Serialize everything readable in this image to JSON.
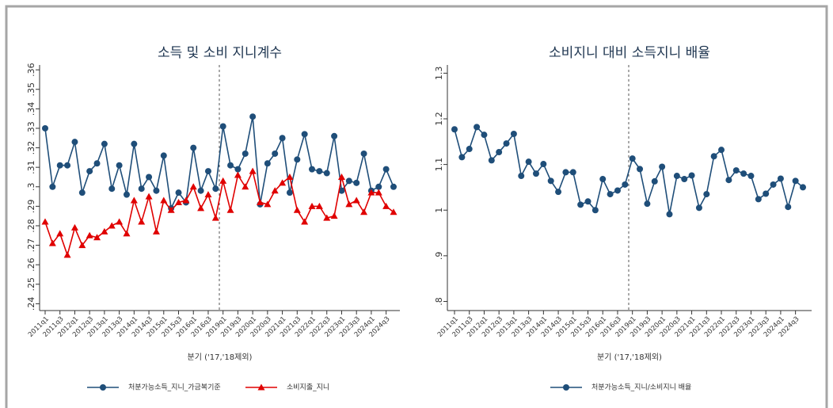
{
  "chart_data": [
    {
      "type": "line",
      "title": "소득 및 소비 지니계수",
      "xlabel": "분기 ('17,'18제외)",
      "categories": [
        "2011q1",
        null,
        "2011q3",
        null,
        "2012q1",
        null,
        "2012q3",
        null,
        "2013q1",
        null,
        "2013q3",
        null,
        "2014q1",
        null,
        "2014q3",
        null,
        "2015q1",
        null,
        "2015q3",
        null,
        "2016q1",
        null,
        "2016q3",
        null,
        "2019q1",
        null,
        "2019q3",
        null,
        "2020q1",
        null,
        "2020q3",
        null,
        "2021q1",
        null,
        "2021q3",
        null,
        "2022q1",
        null,
        "2022q3",
        null,
        "2023q1",
        null,
        "2023q3",
        null,
        "2024q1",
        null,
        "2024q3",
        null
      ],
      "series": [
        {
          "name": "처분가능소득_지니_가금복기준",
          "color": "#1f4e79",
          "marker": "circle",
          "values": [
            0.33,
            0.3,
            0.311,
            0.311,
            0.323,
            0.297,
            0.308,
            0.312,
            0.322,
            0.299,
            0.311,
            0.296,
            0.322,
            0.299,
            0.305,
            0.298,
            0.316,
            0.289,
            0.297,
            0.292,
            0.32,
            0.298,
            0.308,
            0.299,
            0.331,
            0.311,
            0.309,
            0.317,
            0.336,
            0.291,
            0.312,
            0.317,
            0.325,
            0.297,
            0.314,
            0.327,
            0.309,
            0.308,
            0.307,
            0.326,
            0.298,
            0.303,
            0.302,
            0.317,
            0.298,
            0.3,
            0.309,
            0.3
          ]
        },
        {
          "name": "소비지출_지니",
          "color": "#e00000",
          "marker": "triangle",
          "values": [
            0.282,
            0.271,
            0.276,
            0.265,
            0.279,
            0.27,
            0.275,
            0.274,
            0.277,
            0.28,
            0.282,
            0.276,
            0.293,
            0.282,
            0.295,
            0.277,
            0.293,
            0.288,
            0.292,
            0.293,
            0.3,
            0.289,
            0.296,
            0.284,
            0.303,
            0.288,
            0.306,
            0.3,
            0.308,
            0.292,
            0.291,
            0.298,
            0.302,
            0.305,
            0.288,
            0.282,
            0.29,
            0.29,
            0.284,
            0.285,
            0.305,
            0.291,
            0.293,
            0.287,
            0.297,
            0.297,
            0.29,
            0.287
          ]
        }
      ],
      "ylim": [
        0.2365,
        0.3625
      ],
      "yticks": [
        {
          "value": 0.24,
          "label": ".24"
        },
        {
          "value": 0.25,
          "label": ".25"
        },
        {
          "value": 0.26,
          "label": ".26"
        },
        {
          "value": 0.27,
          "label": ".27"
        },
        {
          "value": 0.28,
          "label": ".28"
        },
        {
          "value": 0.29,
          "label": ".29"
        },
        {
          "value": 0.3,
          "label": ".3"
        },
        {
          "value": 0.31,
          "label": ".31"
        },
        {
          "value": 0.32,
          "label": ".32"
        },
        {
          "value": 0.33,
          "label": ".33"
        },
        {
          "value": 0.34,
          "label": ".34"
        },
        {
          "value": 0.35,
          "label": ".35"
        },
        {
          "value": 0.36,
          "label": ".36"
        }
      ]
    },
    {
      "type": "line",
      "title": "소비지니 대비 소득지니 배율",
      "xlabel": "분기 ('17,'18제외)",
      "categories": [
        "2011q1",
        null,
        "2011q3",
        null,
        "2012q1",
        null,
        "2012q3",
        null,
        "2013q1",
        null,
        "2013q3",
        null,
        "2014q1",
        null,
        "2014q3",
        null,
        "2015q1",
        null,
        "2015q3",
        null,
        "2016q1",
        null,
        "2016q3",
        null,
        "2019q1",
        null,
        "2019q3",
        null,
        "2020q1",
        null,
        "2020q3",
        null,
        "2021q1",
        null,
        "2021q3",
        null,
        "2022q1",
        null,
        "2022q3",
        null,
        "2023q1",
        null,
        "2023q3",
        null,
        "2024q1",
        null,
        "2024q3",
        null
      ],
      "series": [
        {
          "name": "처분가능소득_지니/소비지니 배율",
          "color": "#1f4e79",
          "marker": "circle",
          "values": [
            1.177,
            1.116,
            1.134,
            1.182,
            1.165,
            1.109,
            1.127,
            1.146,
            1.167,
            1.075,
            1.106,
            1.08,
            1.101,
            1.064,
            1.04,
            1.083,
            1.083,
            1.012,
            1.019,
            1.0,
            1.068,
            1.035,
            1.043,
            1.056,
            1.113,
            1.09,
            1.014,
            1.063,
            1.095,
            0.991,
            1.075,
            1.068,
            1.076,
            1.005,
            1.035,
            1.118,
            1.132,
            1.066,
            1.087,
            1.08,
            1.075,
            1.024,
            1.036,
            1.056,
            1.069,
            1.007,
            1.064,
            1.05
          ]
        }
      ],
      "ylim": [
        0.78,
        1.318
      ],
      "yticks": [
        {
          "value": 0.8,
          "label": ".8"
        },
        {
          "value": 0.9,
          "label": ".9"
        },
        1,
        1.1,
        1.2,
        1.3
      ]
    }
  ]
}
